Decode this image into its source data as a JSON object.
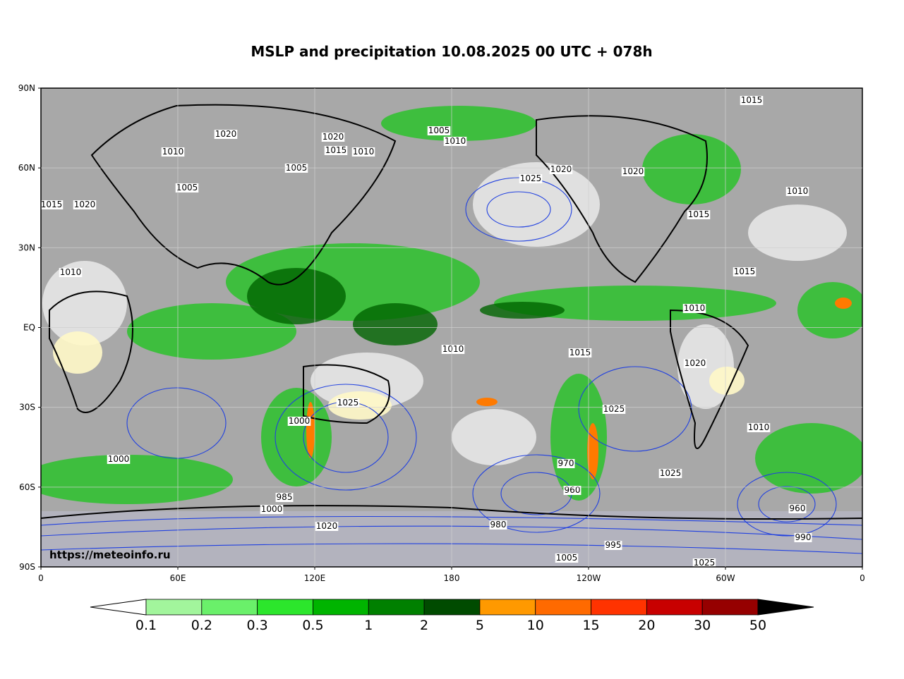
{
  "title": "MSLP and precipitation 10.08.2025 00 UTC + 078h",
  "lat_labels": [
    "90N",
    "60N",
    "30N",
    "EQ",
    "30S",
    "60S",
    "90S"
  ],
  "lon_labels": [
    "0",
    "60E",
    "120E",
    "180",
    "120W",
    "60W",
    "0"
  ],
  "watermark": "https://meteoinfo.ru",
  "colorbar": {
    "labels": [
      "0.1",
      "0.2",
      "0.3",
      "0.5",
      "1",
      "2",
      "5",
      "10",
      "15",
      "20",
      "30",
      "50"
    ],
    "colors": [
      "#a2f59c",
      "#6af06a",
      "#2ce62c",
      "#00b400",
      "#008000",
      "#004b00",
      "#ff9900",
      "#ff6a00",
      "#ff3300",
      "#c80000",
      "#960000"
    ]
  },
  "isobar_labels": [
    "1015",
    "1005",
    "1010",
    "1020",
    "1020",
    "1015",
    "1010",
    "1010",
    "1005",
    "1005",
    "1025",
    "1020",
    "1020",
    "1010",
    "1015",
    "1015",
    "1020",
    "1010",
    "1015",
    "1010",
    "1010",
    "1015",
    "1020",
    "1025",
    "1025",
    "1000",
    "1010",
    "1000",
    "970",
    "960",
    "1025",
    "960",
    "980",
    "990",
    "995",
    "1025",
    "1005",
    "985",
    "1000",
    "1020"
  ]
}
